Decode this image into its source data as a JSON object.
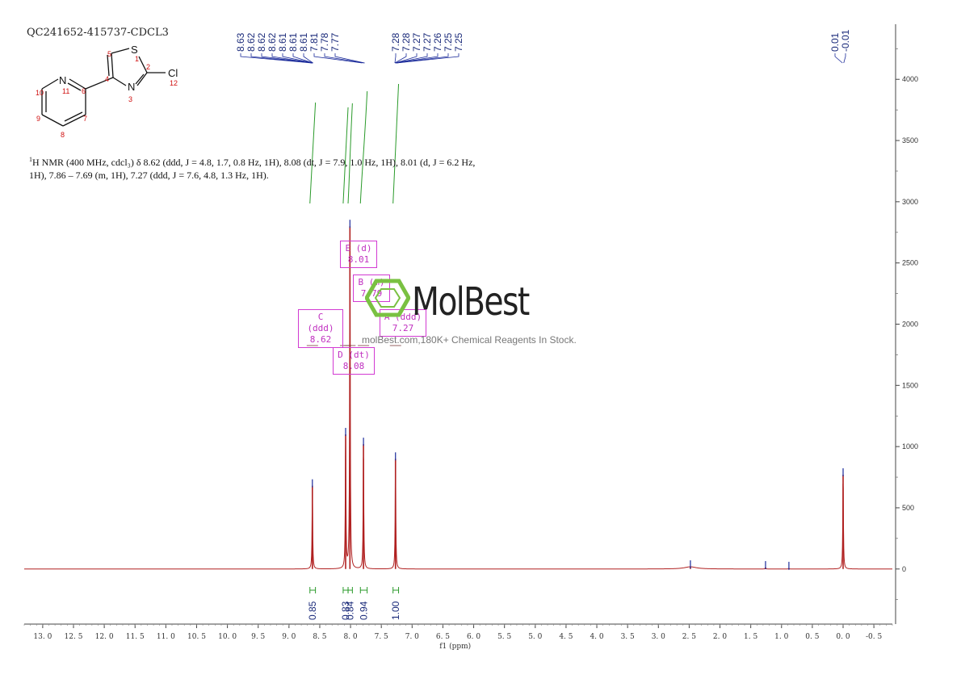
{
  "sample_id": "QC241652-415737-CDCL3",
  "nmr_description": {
    "nucleus_sup": "1",
    "line": "H NMR (400 MHz, cdcl₃) δ 8.62 (ddd, J = 4.8, 1.7, 0.8 Hz, 1H), 8.08 (dt, J = 7.9, 1.0 Hz, 1H), 8.01 (d, J = 6.2 Hz, 1H), 7.86 – 7.69 (m, 1H), 7.27 (ddd, J = 7.6, 4.8, 1.3 Hz, 1H)."
  },
  "structure": {
    "atoms": {
      "S": "S",
      "N3": "N",
      "N11": "N",
      "Cl": "Cl"
    },
    "atom_numbers": [
      "1",
      "2",
      "3",
      "4",
      "5",
      "6",
      "7",
      "8",
      "9",
      "10",
      "11",
      "12"
    ]
  },
  "peak_boxes": [
    {
      "id": "E",
      "mult": "E (d)",
      "shift": "8.01"
    },
    {
      "id": "B",
      "mult": "B (m)",
      "shift": "7.79"
    },
    {
      "id": "C",
      "mult": "C (ddd)",
      "shift": "8.62"
    },
    {
      "id": "A",
      "mult": "A (ddd)",
      "shift": "7.27"
    },
    {
      "id": "D",
      "mult": "D (dt)",
      "shift": "8.08"
    }
  ],
  "watermark": {
    "brand": "MolBest",
    "tagline": "molBest.com,180K+ Chemical Reagents In Stock."
  },
  "colors": {
    "spectrum": "#b02020",
    "peak_marker": "#1a2a9a",
    "integral": "#2a9a2a",
    "annotation_box": "#d23ad2",
    "logo": "#7ac142"
  },
  "chart_data": {
    "type": "line",
    "xlabel": "f1 (ppm)",
    "ylabel": "",
    "xlim": [
      13.3,
      -0.8
    ],
    "ylim": [
      -450,
      4450
    ],
    "x_ticks": [
      "13.0",
      "12.5",
      "12.0",
      "11.5",
      "11.0",
      "10.5",
      "10.0",
      "9.5",
      "9.0",
      "8.5",
      "8.0",
      "7.5",
      "7.0",
      "6.5",
      "6.0",
      "5.5",
      "5.0",
      "4.5",
      "4.0",
      "3.5",
      "3.0",
      "2.5",
      "2.0",
      "1.5",
      "1.0",
      "0.5",
      "0.0",
      "-0.5"
    ],
    "y_ticks": [
      "0",
      "500",
      "1000",
      "1500",
      "2000",
      "2500",
      "3000",
      "3500",
      "4000"
    ],
    "peaks": [
      {
        "ppm": 8.62,
        "intensity": 680
      },
      {
        "ppm": 8.08,
        "intensity": 1100
      },
      {
        "ppm": 8.01,
        "intensity": 2800
      },
      {
        "ppm": 7.79,
        "intensity": 1020
      },
      {
        "ppm": 7.27,
        "intensity": 900
      },
      {
        "ppm": 0.0,
        "intensity": 770
      },
      {
        "ppm": 2.48,
        "intensity": 18
      },
      {
        "ppm": 1.26,
        "intensity": 12
      },
      {
        "ppm": 0.88,
        "intensity": 6
      }
    ],
    "peak_labels_left": [
      "8.63",
      "8.62",
      "8.62",
      "8.62",
      "8.61",
      "8.61",
      "8.61",
      "7.81",
      "7.78",
      "7.77"
    ],
    "peak_labels_right": [
      "7.28",
      "7.28",
      "7.27",
      "7.27",
      "7.26",
      "7.25",
      "7.25"
    ],
    "peak_labels_tms": [
      "0.01",
      "-0.01"
    ],
    "integrals": [
      {
        "from": 8.66,
        "to": 8.57,
        "value": "0.85"
      },
      {
        "from": 8.12,
        "to": 8.04,
        "value": "0.83"
      },
      {
        "from": 8.04,
        "to": 7.97,
        "value": "0.84"
      },
      {
        "from": 7.84,
        "to": 7.73,
        "value": "0.94"
      },
      {
        "from": 7.31,
        "to": 7.22,
        "value": "1.00"
      }
    ]
  }
}
